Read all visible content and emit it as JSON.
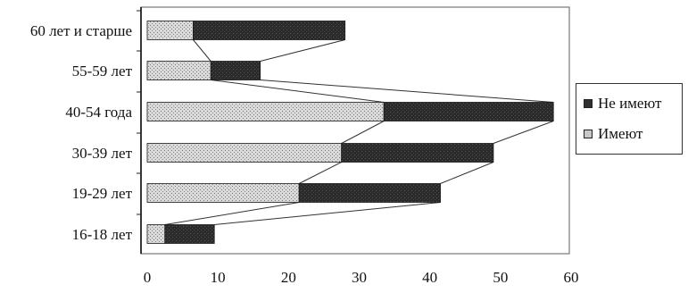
{
  "chart_data": {
    "type": "bar",
    "orientation": "horizontal",
    "stacked": true,
    "categories": [
      "60 лет и старше",
      "55-59 лет",
      "40-54 года",
      "30-39 лет",
      "19-29 лет",
      "16-18 лет"
    ],
    "series": [
      {
        "name": "Имеют",
        "values": [
          6.5,
          9,
          33.5,
          27.5,
          21.5,
          2.5
        ],
        "color": "#c8c8c8",
        "pattern": "light-dots"
      },
      {
        "name": "Не имеют",
        "values": [
          21.5,
          7,
          24,
          21.5,
          20,
          7
        ],
        "color": "#303030",
        "pattern": "dark-dots"
      }
    ],
    "xlim": [
      0,
      60
    ],
    "xticks": [
      0,
      10,
      20,
      30,
      40,
      50,
      60
    ],
    "series_lines": true,
    "grid": false,
    "legend_position": "right"
  },
  "legend": {
    "items": [
      {
        "label": "Не имеют",
        "swatch_color": "#303030"
      },
      {
        "label": "Имеют",
        "swatch_color": "#c8c8c8"
      }
    ]
  }
}
